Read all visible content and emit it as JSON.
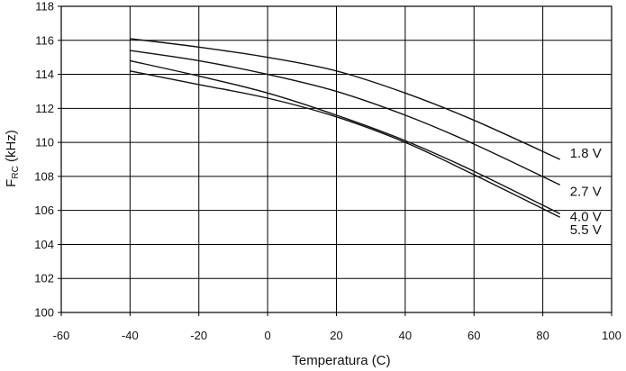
{
  "chart_data": {
    "type": "line",
    "title": "",
    "xlabel": "Temperatura (C)",
    "ylabel_main": "F",
    "ylabel_sub": "RC",
    "ylabel_unit": " (kHz)",
    "xlim": [
      -60,
      100
    ],
    "ylim": [
      100,
      118
    ],
    "x_ticks": [
      "-60",
      "-40",
      "-20",
      "0",
      "20",
      "40",
      "60",
      "80",
      "100"
    ],
    "y_ticks": [
      "100",
      "102",
      "104",
      "106",
      "108",
      "110",
      "112",
      "114",
      "116",
      "118"
    ],
    "grid": true,
    "series": [
      {
        "name": "1.8 V",
        "x": [
          -40,
          -20,
          0,
          20,
          40,
          60,
          85
        ],
        "y": [
          116.1,
          115.6,
          115.0,
          114.2,
          112.9,
          111.3,
          109.0
        ]
      },
      {
        "name": "2.7 V",
        "x": [
          -40,
          -20,
          0,
          20,
          40,
          60,
          85
        ],
        "y": [
          115.4,
          114.8,
          114.0,
          113.0,
          111.6,
          109.9,
          107.5
        ]
      },
      {
        "name": "4.0 V",
        "x": [
          -40,
          -20,
          0,
          20,
          40,
          60,
          85
        ],
        "y": [
          114.8,
          113.9,
          112.9,
          111.6,
          110.1,
          108.3,
          105.8
        ]
      },
      {
        "name": "5.5 V",
        "x": [
          -40,
          -20,
          0,
          20,
          40,
          60,
          85
        ],
        "y": [
          114.2,
          113.4,
          112.6,
          111.5,
          110.0,
          108.1,
          105.6
        ]
      }
    ]
  }
}
